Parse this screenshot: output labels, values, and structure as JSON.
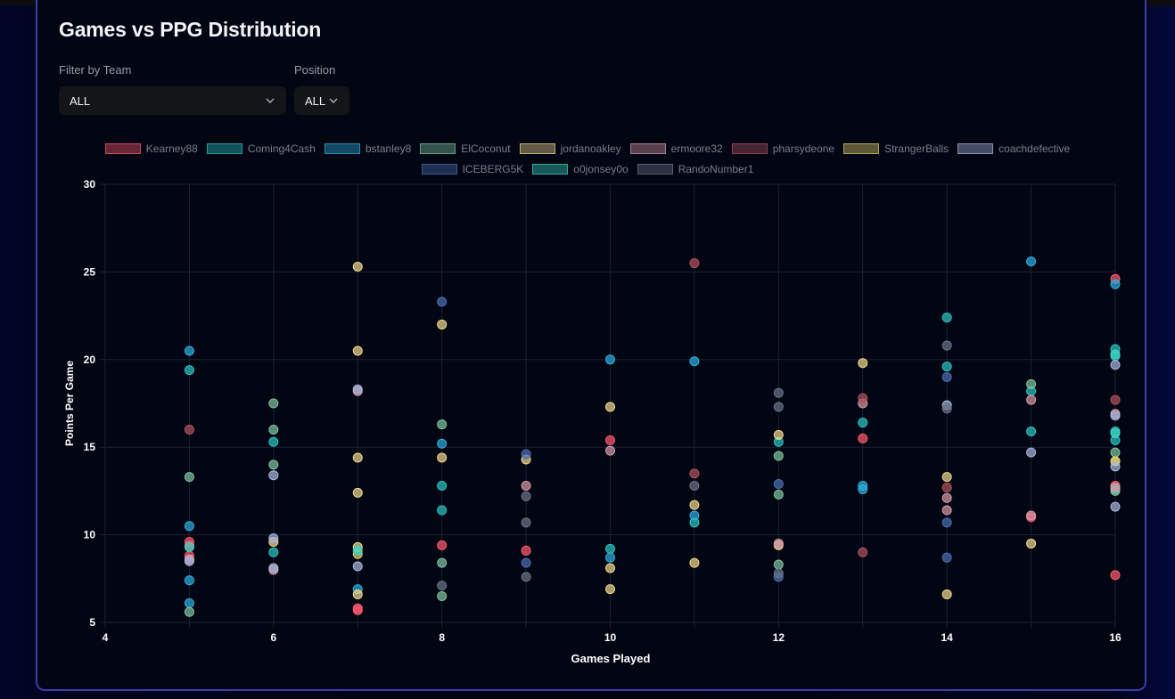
{
  "page": {
    "title": "Games vs PPG Distribution",
    "filters": {
      "team_label": "Filter by Team",
      "team_value": "ALL",
      "position_label": "Position",
      "position_value": "ALL"
    }
  },
  "colors": {
    "accent_border": "#3a3fb0",
    "card_bg": "#020613"
  },
  "chart_data": {
    "type": "scatter",
    "xlabel": "Games Played",
    "ylabel": "Points Per Game",
    "xlim": [
      4,
      16
    ],
    "ylim": [
      5,
      30
    ],
    "x_ticks": [
      4,
      6,
      8,
      10,
      12,
      14,
      16
    ],
    "y_ticks": [
      5,
      10,
      15,
      20,
      25,
      30
    ],
    "grid": true,
    "legend_position": "top",
    "series": [
      {
        "name": "Kearney88",
        "color": "#ff5a6e",
        "points": [
          [
            5,
            9.6
          ],
          [
            5,
            9.4
          ],
          [
            5,
            8.8
          ],
          [
            7,
            5.8
          ],
          [
            7,
            5.7
          ],
          [
            8,
            9.4
          ],
          [
            9,
            9.1
          ],
          [
            10,
            15.4
          ],
          [
            13,
            15.5
          ],
          [
            15,
            11.0
          ],
          [
            16,
            24.6
          ],
          [
            16,
            12.8
          ],
          [
            16,
            7.7
          ]
        ]
      },
      {
        "name": "Coming4Cash",
        "color": "#2cc4c2",
        "points": [
          [
            5,
            19.4
          ],
          [
            6,
            15.3
          ],
          [
            6,
            9.0
          ],
          [
            8,
            12.8
          ],
          [
            8,
            11.4
          ],
          [
            10,
            9.2
          ],
          [
            11,
            10.7
          ],
          [
            12,
            15.3
          ],
          [
            13,
            16.4
          ],
          [
            14,
            22.4
          ],
          [
            14,
            19.6
          ],
          [
            15,
            18.2
          ],
          [
            15,
            15.9
          ],
          [
            16,
            20.6
          ],
          [
            16,
            20.2
          ],
          [
            16,
            15.9
          ],
          [
            16,
            15.4
          ],
          [
            16,
            12.6
          ]
        ]
      },
      {
        "name": "bstanley8",
        "color": "#2eaede",
        "points": [
          [
            5,
            20.5
          ],
          [
            5,
            10.5
          ],
          [
            5,
            7.4
          ],
          [
            5,
            6.1
          ],
          [
            7,
            6.9
          ],
          [
            8,
            15.2
          ],
          [
            10,
            20.0
          ],
          [
            10,
            8.7
          ],
          [
            11,
            19.9
          ],
          [
            11,
            11.1
          ],
          [
            13,
            12.8
          ],
          [
            13,
            12.6
          ],
          [
            15,
            25.6
          ],
          [
            16,
            24.3
          ]
        ]
      },
      {
        "name": "ElCoconut",
        "color": "#7fc4a0",
        "points": [
          [
            5,
            13.3
          ],
          [
            5,
            5.6
          ],
          [
            6,
            17.5
          ],
          [
            6,
            16.0
          ],
          [
            6,
            14.0
          ],
          [
            8,
            16.3
          ],
          [
            8,
            8.4
          ],
          [
            8,
            6.5
          ],
          [
            12,
            14.5
          ],
          [
            12,
            12.3
          ],
          [
            12,
            8.3
          ],
          [
            15,
            18.6
          ],
          [
            16,
            14.7
          ],
          [
            16,
            12.5
          ]
        ]
      },
      {
        "name": "jordanoakley",
        "color": "#f2d98e",
        "points": [
          [
            6,
            9.6
          ],
          [
            7,
            25.3
          ],
          [
            7,
            20.5
          ],
          [
            7,
            14.4
          ],
          [
            7,
            12.4
          ],
          [
            7,
            9.3
          ],
          [
            7,
            6.6
          ],
          [
            8,
            22.0
          ],
          [
            8,
            14.4
          ],
          [
            9,
            14.3
          ],
          [
            10,
            17.3
          ],
          [
            10,
            8.1
          ],
          [
            10,
            6.9
          ],
          [
            11,
            11.7
          ],
          [
            11,
            8.4
          ],
          [
            12,
            15.7
          ],
          [
            12,
            9.4
          ],
          [
            13,
            19.8
          ],
          [
            14,
            13.3
          ],
          [
            14,
            6.6
          ],
          [
            15,
            9.5
          ],
          [
            16,
            14.2
          ]
        ]
      },
      {
        "name": "ermoore32",
        "color": "#d99aa8",
        "points": [
          [
            5,
            8.6
          ],
          [
            6,
            8.0
          ],
          [
            7,
            18.2
          ],
          [
            9,
            12.8
          ],
          [
            10,
            14.8
          ],
          [
            12,
            9.5
          ],
          [
            13,
            17.5
          ],
          [
            14,
            12.1
          ],
          [
            14,
            11.4
          ],
          [
            15,
            17.7
          ],
          [
            15,
            11.1
          ],
          [
            16,
            16.9
          ],
          [
            16,
            12.7
          ]
        ]
      },
      {
        "name": "pharsydeone",
        "color": "#b0535e",
        "points": [
          [
            5,
            16.0
          ],
          [
            11,
            25.5
          ],
          [
            11,
            13.5
          ],
          [
            13,
            17.8
          ],
          [
            13,
            9.0
          ],
          [
            14,
            12.7
          ],
          [
            16,
            17.7
          ]
        ]
      },
      {
        "name": "StrangerBalls",
        "color": "#e2cf6a",
        "points": [
          [
            7,
            8.9
          ],
          [
            16,
            14.2
          ]
        ]
      },
      {
        "name": "coachdefective",
        "color": "#a9b8de",
        "points": [
          [
            5,
            8.5
          ],
          [
            6,
            13.4
          ],
          [
            6,
            9.8
          ],
          [
            6,
            8.1
          ],
          [
            7,
            18.3
          ],
          [
            7,
            8.2
          ],
          [
            14,
            17.4
          ],
          [
            15,
            14.7
          ],
          [
            16,
            19.7
          ],
          [
            16,
            16.8
          ],
          [
            16,
            13.9
          ],
          [
            16,
            11.6
          ]
        ]
      },
      {
        "name": "ICEBERG5K",
        "color": "#4a6fb2",
        "points": [
          [
            8,
            23.3
          ],
          [
            9,
            14.6
          ],
          [
            9,
            8.4
          ],
          [
            12,
            12.9
          ],
          [
            12,
            7.6
          ],
          [
            14,
            19.0
          ],
          [
            14,
            10.7
          ],
          [
            14,
            8.7
          ]
        ]
      },
      {
        "name": "o0jonsey0o",
        "color": "#3fd6c4",
        "points": [
          [
            5,
            9.3
          ],
          [
            7,
            9.1
          ],
          [
            16,
            20.3
          ],
          [
            16,
            15.8
          ]
        ]
      },
      {
        "name": "RandoNumber1",
        "color": "#6a7488",
        "points": [
          [
            8,
            7.1
          ],
          [
            9,
            12.2
          ],
          [
            9,
            10.7
          ],
          [
            9,
            7.6
          ],
          [
            11,
            12.8
          ],
          [
            12,
            18.1
          ],
          [
            12,
            17.3
          ],
          [
            12,
            7.8
          ],
          [
            14,
            20.8
          ],
          [
            14,
            17.2
          ]
        ]
      }
    ]
  }
}
